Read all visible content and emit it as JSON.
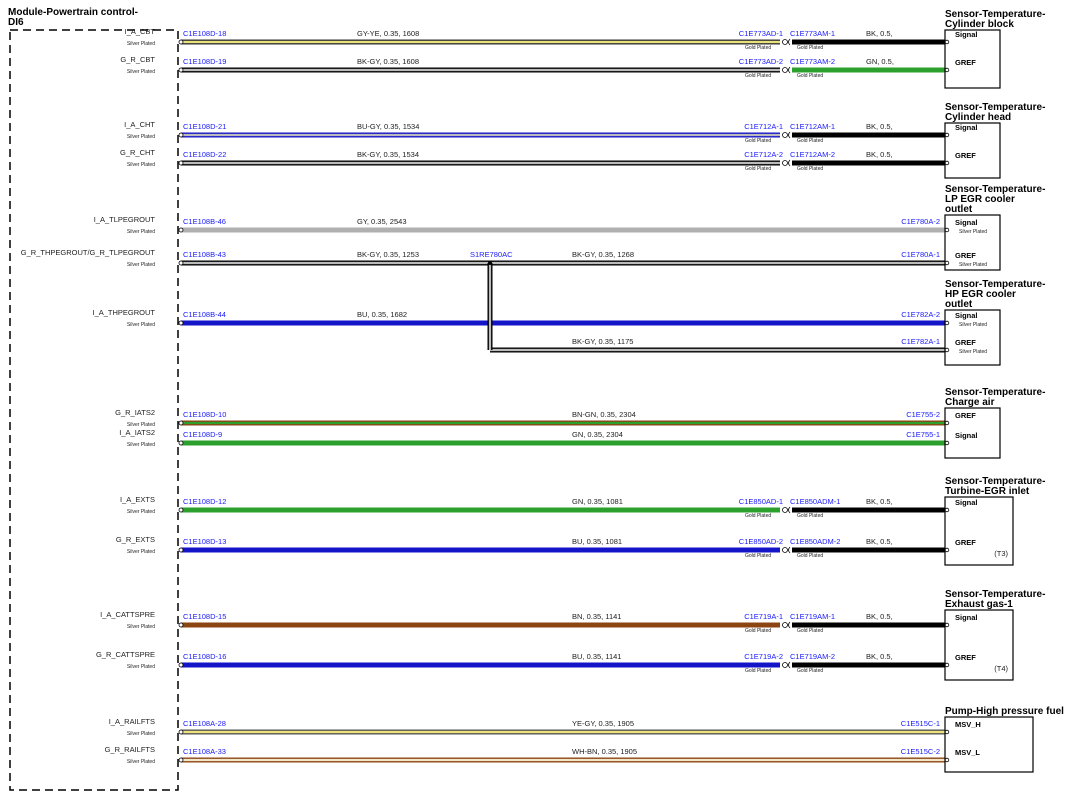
{
  "module": {
    "title": [
      "Module-Powertrain control-",
      "DI6"
    ]
  },
  "components": [
    {
      "title": [
        "Sensor-Temperature-",
        "Cylinder block"
      ],
      "pins": [
        {
          "name": "Signal"
        },
        {
          "name": "GREF"
        }
      ]
    },
    {
      "title": [
        "Sensor-Temperature-",
        "Cylinder head"
      ],
      "pins": [
        {
          "name": "Signal"
        },
        {
          "name": "GREF"
        }
      ]
    },
    {
      "title": [
        "Sensor-Temperature-",
        "LP EGR cooler",
        "outlet"
      ],
      "pins": [
        {
          "name": "Signal",
          "plating": "Silver Plated"
        },
        {
          "name": "GREF",
          "plating": "Silver Plated"
        }
      ]
    },
    {
      "title": [
        "Sensor-Temperature-",
        "HP EGR cooler",
        "outlet"
      ],
      "pins": [
        {
          "name": "Signal",
          "plating": "Silver Plated"
        },
        {
          "name": "GREF",
          "plating": "Silver Plated"
        }
      ]
    },
    {
      "title": [
        "Sensor-Temperature-",
        "Charge air"
      ],
      "pins": [
        {
          "name": "GREF"
        },
        {
          "name": "Signal"
        }
      ]
    },
    {
      "title": [
        "Sensor-Temperature-",
        "Turbine-EGR inlet"
      ],
      "pins": [
        {
          "name": "Signal"
        },
        {
          "name": "GREF"
        }
      ],
      "note": "(T3)"
    },
    {
      "title": [
        "Sensor-Temperature-",
        "Exhaust gas-1"
      ],
      "pins": [
        {
          "name": "Signal"
        },
        {
          "name": "GREF"
        }
      ],
      "note": "(T4)"
    },
    {
      "title": [
        "Pump-High pressure fuel"
      ],
      "pins": [
        {
          "name": "MSV_H"
        },
        {
          "name": "MSV_L"
        }
      ]
    }
  ],
  "wires": [
    {
      "pin": "I_A_CBT",
      "plating": "Silver Plated",
      "from": "C1E108D-18",
      "spec": "GY-YE, 0.35, 1608",
      "color": [
        "#333333",
        "#e8e27a"
      ],
      "inline": {
        "from": "C1E773AD-1",
        "to": "C1E773AM-1",
        "from_plating": "Gold Plated",
        "to_plating": "Gold Plated",
        "spec": "BK, 0.5,",
        "color": [
          "#000000",
          "#000000"
        ]
      }
    },
    {
      "pin": "G_R_CBT",
      "plating": "Silver Plated",
      "from": "C1E108D-19",
      "spec": "BK-GY, 0.35, 1608",
      "color": [
        "#000000",
        "#bbbbbb"
      ],
      "inline": {
        "from": "C1E773AD-2",
        "to": "C1E773AM-2",
        "from_plating": "Gold Plated",
        "to_plating": "Gold Plated",
        "spec": "GN, 0.5,",
        "color": [
          "#2ca02c",
          "#2ca02c"
        ]
      }
    },
    {
      "pin": "I_A_CHT",
      "plating": "Silver Plated",
      "from": "C1E108D-21",
      "spec": "BU-GY, 0.35, 1534",
      "color": [
        "#1515c8",
        "#bbbbbb"
      ],
      "inline": {
        "from": "C1E712A-1",
        "to": "C1E712AM-1",
        "from_plating": "Gold Plated",
        "to_plating": "Gold Plated",
        "spec": "BK, 0.5,",
        "color": [
          "#000000",
          "#000000"
        ]
      }
    },
    {
      "pin": "G_R_CHT",
      "plating": "Silver Plated",
      "from": "C1E108D-22",
      "spec": "BK-GY, 0.35, 1534",
      "color": [
        "#000000",
        "#bbbbbb"
      ],
      "inline": {
        "from": "C1E712A-2",
        "to": "C1E712AM-2",
        "from_plating": "Gold Plated",
        "to_plating": "Gold Plated",
        "spec": "BK, 0.5,",
        "color": [
          "#000000",
          "#000000"
        ]
      }
    },
    {
      "pin": "I_A_TLPEGROUT",
      "plating": "Silver Plated",
      "from": "C1E108B-46",
      "spec": "GY, 0.35, 2543",
      "to": "C1E780A-2",
      "color": [
        "#b0b0b0",
        "#b0b0b0"
      ]
    },
    {
      "pin": "G_R_THPEGROUT/G_R_TLPEGROUT",
      "plating": "Silver Plated",
      "from": "C1E108B-43",
      "spec": "BK-GY, 0.35, 1253",
      "splice": "S1RE780AC",
      "spec2": "BK-GY, 0.35, 1268",
      "to": "C1E780A-1",
      "color": [
        "#000000",
        "#bbbbbb"
      ]
    },
    {
      "pin": "I_A_THPEGROUT",
      "plating": "Silver Plated",
      "from": "C1E108B-44",
      "spec": "BU, 0.35, 1682",
      "to": "C1E782A-2",
      "color": [
        "#1515c8",
        "#1515c8"
      ]
    },
    {
      "spec": "BK-GY, 0.35, 1175",
      "to": "C1E782A-1",
      "color": [
        "#000000",
        "#bbbbbb"
      ]
    },
    {
      "pin": "G_R_IATS2",
      "plating": "Silver Plated",
      "from": "C1E108D-10",
      "spec": "BN-GN, 0.35, 2304",
      "to": "C1E755-2",
      "color": [
        "#8b4513",
        "#2ca02c"
      ]
    },
    {
      "pin": "I_A_IATS2",
      "plating": "Silver Plated",
      "from": "C1E108D-9",
      "spec": "GN, 0.35, 2304",
      "to": "C1E755-1",
      "color": [
        "#2ca02c",
        "#2ca02c"
      ]
    },
    {
      "pin": "I_A_EXTS",
      "plating": "Silver Plated",
      "from": "C1E108D-12",
      "spec": "GN, 0.35, 1081",
      "color": [
        "#2ca02c",
        "#2ca02c"
      ],
      "inline": {
        "from": "C1E850AD-1",
        "to": "C1E850ADM-1",
        "from_plating": "Gold Plated",
        "to_plating": "Gold Plated",
        "spec": "BK, 0.5,",
        "color": [
          "#000000",
          "#000000"
        ]
      }
    },
    {
      "pin": "G_R_EXTS",
      "plating": "Silver Plated",
      "from": "C1E108D-13",
      "spec": "BU, 0.35, 1081",
      "color": [
        "#1515c8",
        "#1515c8"
      ],
      "inline": {
        "from": "C1E850AD-2",
        "to": "C1E850ADM-2",
        "from_plating": "Gold Plated",
        "to_plating": "Gold Plated",
        "spec": "BK, 0.5,",
        "color": [
          "#000000",
          "#000000"
        ]
      }
    },
    {
      "pin": "I_A_CATTSPRE",
      "plating": "Silver Plated",
      "from": "C1E108D-15",
      "spec": "BN, 0.35, 1141",
      "color": [
        "#8b4513",
        "#8b4513"
      ],
      "inline": {
        "from": "C1E719A-1",
        "to": "C1E719AM-1",
        "from_plating": "Gold Plated",
        "to_plating": "Gold Plated",
        "spec": "BK, 0.5,",
        "color": [
          "#000000",
          "#000000"
        ]
      }
    },
    {
      "pin": "G_R_CATTSPRE",
      "plating": "Silver Plated",
      "from": "C1E108D-16",
      "spec": "BU, 0.35, 1141",
      "color": [
        "#1515c8",
        "#1515c8"
      ],
      "inline": {
        "from": "C1E719A-2",
        "to": "C1E719AM-2",
        "from_plating": "Gold Plated",
        "to_plating": "Gold Plated",
        "spec": "BK, 0.5,",
        "color": [
          "#000000",
          "#000000"
        ]
      }
    },
    {
      "pin": "I_A_RAILFTS",
      "plating": "Silver Plated",
      "from": "C1E108A-28",
      "spec": "YE-GY, 0.35, 1905",
      "to": "C1E515C-1",
      "color": [
        "#555555",
        "#eee27a"
      ]
    },
    {
      "pin": "G_R_RAILFTS",
      "plating": "Silver Plated",
      "from": "C1E108A-33",
      "spec": "WH-BN, 0.35, 1905",
      "to": "C1E515C-2",
      "color": [
        "#8b4513",
        "#f2e6c8"
      ]
    }
  ]
}
